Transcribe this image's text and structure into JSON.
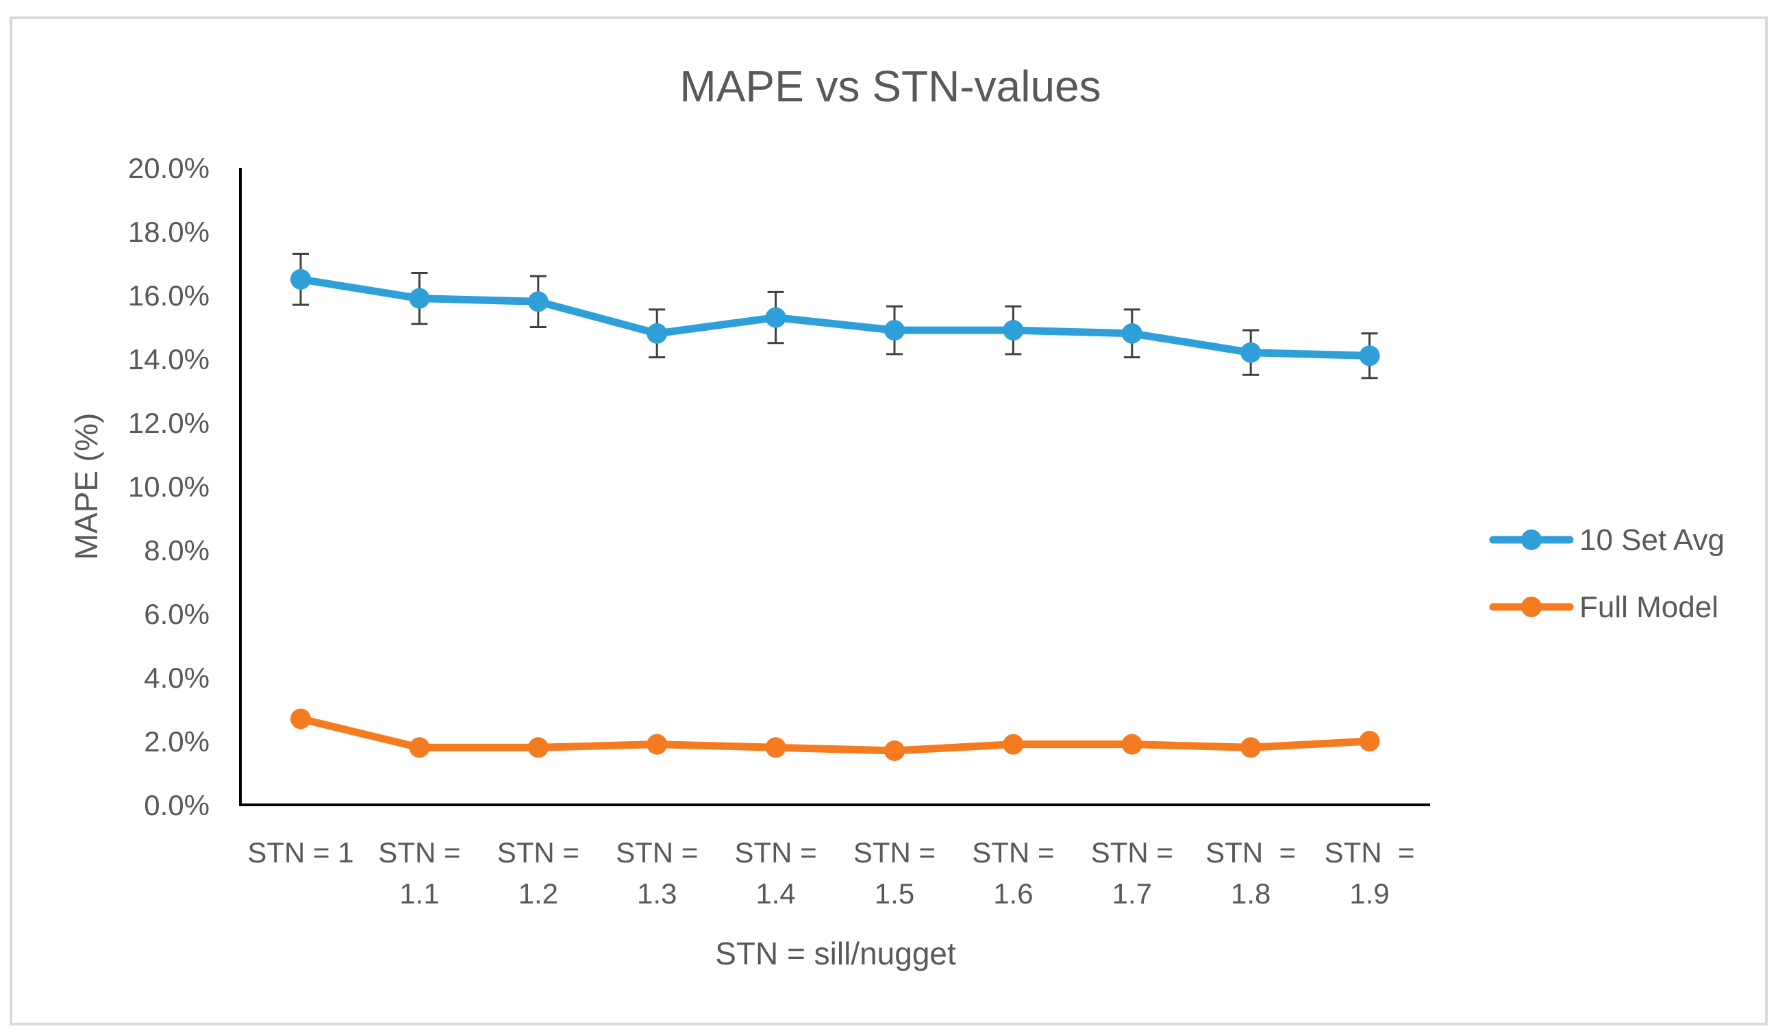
{
  "chart_data": {
    "type": "line",
    "title": "MAPE vs STN-values",
    "xlabel": "STN = sill/nugget",
    "ylabel": "MAPE (%)",
    "ylim": [
      0,
      20
    ],
    "ytick_labels": [
      "0.0%",
      "2.0%",
      "4.0%",
      "6.0%",
      "8.0%",
      "10.0%",
      "12.0%",
      "14.0%",
      "16.0%",
      "18.0%",
      "20.0%"
    ],
    "categories": [
      [
        "STN = 1",
        ""
      ],
      [
        "STN =",
        "1.1"
      ],
      [
        "STN =",
        "1.2"
      ],
      [
        "STN =",
        "1.3"
      ],
      [
        "STN =",
        "1.4"
      ],
      [
        "STN =",
        "1.5"
      ],
      [
        "STN =",
        "1.6"
      ],
      [
        "STN =",
        "1.7"
      ],
      [
        "STN  =",
        "1.8"
      ],
      [
        "STN  =",
        "1.9"
      ]
    ],
    "series": [
      {
        "name": "10 Set Avg",
        "color": "#2e9fd8",
        "values": [
          16.5,
          15.9,
          15.8,
          14.8,
          15.3,
          14.9,
          14.9,
          14.8,
          14.2,
          14.1
        ],
        "error": [
          0.8,
          0.8,
          0.8,
          0.75,
          0.8,
          0.75,
          0.75,
          0.75,
          0.7,
          0.7
        ]
      },
      {
        "name": "Full Model",
        "color": "#f47b20",
        "values": [
          2.7,
          1.8,
          1.8,
          1.9,
          1.8,
          1.7,
          1.9,
          1.9,
          1.8,
          2.0
        ]
      }
    ],
    "grid": false,
    "legend": "right"
  }
}
